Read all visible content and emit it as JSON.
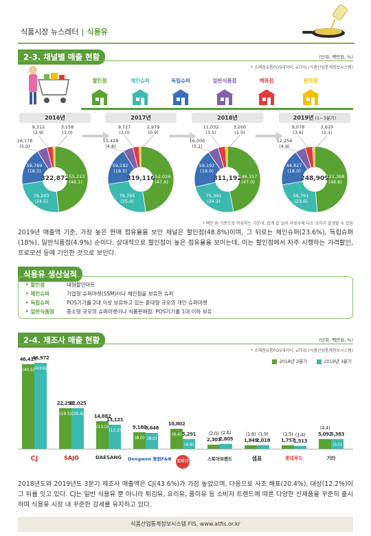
{
  "header": {
    "newsletter": "식품시장 뉴스레터",
    "separator": "|",
    "topic": "식용유"
  },
  "section1": {
    "title": "2-3. 채널별 매출 현황",
    "unit": "(단위: 백만원, %)",
    "source": "* 소매점유통POS데이터, aTFIS (식품산업통계정보시스템)",
    "channels": [
      "할인점",
      "체인슈퍼",
      "독립슈퍼",
      "일반식품점",
      "백화점",
      "편의점"
    ],
    "channel_colors": [
      "#5aa332",
      "#3dbab0",
      "#3b6fb6",
      "#8060a8",
      "#e03c3c",
      "#f5c000"
    ],
    "years": [
      {
        "label": "2016년",
        "sub": "",
        "total": "322,872",
        "big": [
          "155,213",
          "(48.1)"
        ],
        "teal": [
          "79,243",
          "(24.5)"
        ],
        "blue": [
          "59,769",
          "(18.5)"
        ],
        "purple": [
          "16,176",
          "(5.0)"
        ],
        "red": [
          "9,312",
          "(2.9)"
        ],
        "yellow": [
          "3,158",
          "(1.0)"
        ]
      },
      {
        "label": "2017년",
        "sub": "",
        "total": "319,116",
        "big": [
          "152,026",
          "(47.6)"
        ],
        "teal": [
          "79,765",
          "(25.0)"
        ],
        "blue": [
          "59,192",
          "(18.5)"
        ],
        "purple": [
          "15,428",
          "(4.8)"
        ],
        "red": [
          "9,727",
          "(3.0)"
        ],
        "yellow": [
          "2,979",
          "(0.9)"
        ]
      },
      {
        "label": "2018년",
        "sub": "",
        "total": "311,192",
        "big": [
          "146,317",
          "(47.0)"
        ],
        "teal": [
          "75,391",
          "(24.2)"
        ],
        "blue": [
          "59,192",
          "(19.0)"
        ],
        "purple": [
          "16,000",
          "(5.1)"
        ],
        "red": [
          "11,032",
          "(3.5)"
        ],
        "yellow": [
          "3,260",
          "(1.0)"
        ]
      },
      {
        "label": "2019년",
        "sub": "(1~3분기)",
        "total": "248,909",
        "big": [
          "121,368",
          "(48.8)"
        ],
        "teal": [
          "58,761",
          "(23.6)"
        ],
        "blue": [
          "44,827",
          "(18.0)"
        ],
        "purple": [
          "12,254",
          "(4.9)"
        ],
        "red": [
          "9,078",
          "(3.6)"
        ],
        "yellow": [
          "2,620",
          "(1.1)"
        ]
      }
    ],
    "note": "* 백만 원 기준으로 작성하는 가운데, 합계 값 일의 자릿수에 다소 오차가 발생할 수 있음",
    "paragraph": "2019년 매출액 기준, 가장 높은 판매 점유율을 보인 채널은 할인점(48.8%)이며, 그 뒤로는 체인슈퍼(23.6%), 독립슈퍼(18%), 일반식품점(4.9%) 순이다. 상대적으로 할인점이 높은 점유율을 보이는데, 이는 할인점에서 자주 시행하는 가격할인, 프로모션 등에 기인한 것으로 보인다."
  },
  "glossary": {
    "title": "식용유 생산실적",
    "items": [
      {
        "term": "할인점",
        "desc": "대형할인마트"
      },
      {
        "term": "체인슈퍼",
        "desc": "기업형 슈퍼마켓(SSM)이나 체인점을 보유한 슈퍼"
      },
      {
        "term": "독립슈퍼",
        "desc": "POS기기를 2대 이상 보유하고 있는 중대형 규모의 개인 슈퍼마켓"
      },
      {
        "term": "일반식품점",
        "desc": "중소형 규모의 슈퍼마켓이나 식품판매점. POS기기를 1대 이하 보유"
      }
    ]
  },
  "section2": {
    "title": "2-4. 제조사 매출 현황",
    "unit": "(단위: 백만원, %)",
    "source": "* 소매점유통POS데이터, aTFIS (식품산업통계정보시스템)",
    "paragraph": "2018년도와 2019년도 3분기 제조사 매출액은 CJ(43.6%)가 가장 높았으며, 다음으로 사조 해표(20.4%), 대상(12.2%)이 그 뒤를 잇고 있다. CJ는 일반 식용유 뿐 아니라 튀김유, 요리유, 풍미유 등 소비자 트렌드에 따른 다양한 신제품을 꾸준히 출시하며 식용유 시장 내 꾸준한 강세를 유지하고 있다."
  },
  "chart_data": [
    {
      "type": "pie",
      "title": "2016년",
      "categories": [
        "할인점",
        "체인슈퍼",
        "독립슈퍼",
        "일반식품점",
        "백화점",
        "편의점"
      ],
      "values": [
        155213,
        79243,
        59769,
        16176,
        9312,
        3158
      ],
      "shares": [
        48.1,
        24.5,
        18.5,
        5.0,
        2.9,
        1.0
      ],
      "total": 322872
    },
    {
      "type": "pie",
      "title": "2017년",
      "categories": [
        "할인점",
        "체인슈퍼",
        "독립슈퍼",
        "일반식품점",
        "백화점",
        "편의점"
      ],
      "values": [
        152026,
        79765,
        59192,
        15428,
        9727,
        2979
      ],
      "shares": [
        47.6,
        25.0,
        18.5,
        4.8,
        3.0,
        0.9
      ],
      "total": 319116
    },
    {
      "type": "pie",
      "title": "2018년",
      "categories": [
        "할인점",
        "체인슈퍼",
        "독립슈퍼",
        "일반식품점",
        "백화점",
        "편의점"
      ],
      "values": [
        146317,
        75391,
        59192,
        16000,
        11032,
        3260
      ],
      "shares": [
        47.0,
        24.2,
        19.0,
        5.1,
        3.5,
        1.0
      ],
      "total": 311192
    },
    {
      "type": "pie",
      "title": "2019년 (1~3분기)",
      "categories": [
        "할인점",
        "체인슈퍼",
        "독립슈퍼",
        "일반식품점",
        "백화점",
        "편의점"
      ],
      "values": [
        121368,
        58761,
        44827,
        12254,
        9078,
        2620
      ],
      "shares": [
        48.8,
        23.6,
        18.0,
        4.9,
        3.6,
        1.1
      ],
      "total": 248909
    },
    {
      "type": "bar",
      "categories": [
        "CJ",
        "SAJO",
        "DAESANG",
        "Dongwon",
        "오뚜기",
        "스토아브랜드",
        "샘표",
        "롯데푸드",
        "기타"
      ],
      "series": [
        {
          "name": "2018년 3분기",
          "color": "#5aa332",
          "values": [
            46417,
            22292,
            14882,
            9180,
            10802,
            2303,
            1849,
            1757,
            5092
          ],
          "value_labels": [
            "46,417",
            "22,292",
            "14,882",
            "9,180",
            "10,802",
            "2,303",
            "1,849",
            "1,757",
            "5,092"
          ],
          "shares": [
            "(40.5)",
            "(19.5)",
            "(13.0)",
            "(8.0)",
            "(9.4)",
            "(2.0)",
            "(1.6)",
            "(1.5)",
            "(4.4)"
          ]
        },
        {
          "name": "2019년 3분기",
          "color": "#3dbab0",
          "values": [
            46972,
            22025,
            13121,
            8648,
            5291,
            2805,
            2018,
            1513,
            5383
          ],
          "value_labels": [
            "46,972",
            "22,025",
            "13,121",
            "8,648",
            "5,291",
            "2,805",
            "2,018",
            "1,513",
            "5,383"
          ],
          "shares": [
            "(43.6)",
            "(20.4)",
            "(12.2)",
            "(8.0)",
            "(4.9)",
            "(2.6)",
            "(1.9)",
            "(1.4)",
            "(5.0)"
          ]
        }
      ],
      "ylim": [
        0,
        50000
      ],
      "legend": "top-right"
    }
  ],
  "logos": [
    "CJ",
    "SAJO",
    "DAESANG",
    "Dongwon 동원F&B",
    "오뚜기",
    "스토아브랜드",
    "샘표",
    "롯데푸드",
    "기타"
  ],
  "footer": "식품산업통계정보시스템 FIS, www.atfis.or.kr"
}
